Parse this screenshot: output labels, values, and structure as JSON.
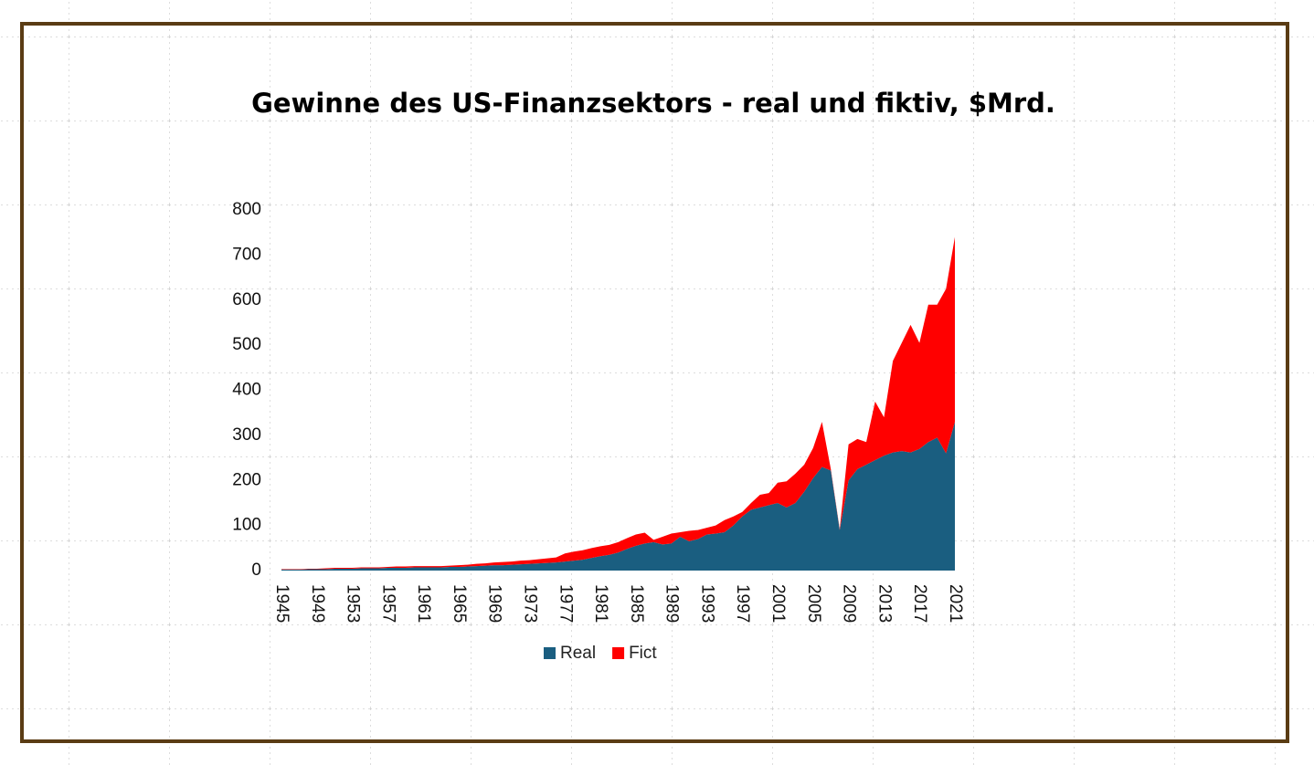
{
  "chart_data": {
    "type": "stacked-area",
    "title": "Gewinne des US-Finanzsektors - real und fiktiv, $Mrd.",
    "categories": [
      "1945",
      null,
      null,
      null,
      "1949",
      null,
      null,
      null,
      "1953",
      null,
      null,
      null,
      "1957",
      null,
      null,
      null,
      "1961",
      null,
      null,
      null,
      "1965",
      null,
      null,
      null,
      "1969",
      null,
      null,
      null,
      "1973",
      null,
      null,
      null,
      "1977",
      null,
      null,
      null,
      "1981",
      null,
      null,
      null,
      "1985",
      null,
      null,
      null,
      "1989",
      null,
      null,
      null,
      "1993",
      null,
      null,
      null,
      "1997",
      null,
      null,
      null,
      "2001",
      null,
      null,
      null,
      "2005",
      null,
      null,
      null,
      "2009",
      null,
      null,
      null,
      "2013",
      null,
      null,
      null,
      "2017",
      null,
      null,
      null,
      "2021"
    ],
    "series": [
      {
        "name": "Real",
        "color": "#1a5e80",
        "values": [
          2,
          2,
          2,
          3,
          3,
          3,
          4,
          4,
          4,
          5,
          5,
          5,
          6,
          6,
          6,
          7,
          7,
          7,
          7,
          8,
          8,
          9,
          10,
          11,
          12,
          12,
          13,
          14,
          15,
          16,
          17,
          18,
          20,
          22,
          24,
          28,
          32,
          35,
          40,
          48,
          55,
          60,
          63,
          58,
          60,
          75,
          65,
          70,
          80,
          82,
          85,
          100,
          120,
          135,
          140,
          145,
          150,
          140,
          150,
          175,
          205,
          230,
          222,
          90,
          200,
          225,
          235,
          245,
          255,
          262,
          265,
          262,
          270,
          285,
          295,
          260,
          330
        ]
      },
      {
        "name": "Fict",
        "color": "#ff0000",
        "values": [
          1,
          1,
          1,
          1,
          1,
          2,
          2,
          2,
          2,
          2,
          2,
          2,
          2,
          3,
          3,
          3,
          3,
          3,
          3,
          3,
          4,
          4,
          5,
          5,
          6,
          7,
          7,
          8,
          8,
          9,
          10,
          11,
          18,
          20,
          21,
          22,
          22,
          22,
          23,
          24,
          25,
          24,
          5,
          17,
          22,
          10,
          23,
          20,
          15,
          18,
          27,
          20,
          10,
          15,
          28,
          27,
          45,
          58,
          65,
          60,
          67,
          100,
          3,
          2,
          80,
          67,
          50,
          130,
          85,
          203,
          240,
          283,
          235,
          305,
          295,
          365,
          410
        ]
      }
    ],
    "ylim": [
      0,
      800
    ],
    "yticks": [
      0,
      100,
      200,
      300,
      400,
      500,
      600,
      700,
      800
    ],
    "legend": "bottom"
  }
}
